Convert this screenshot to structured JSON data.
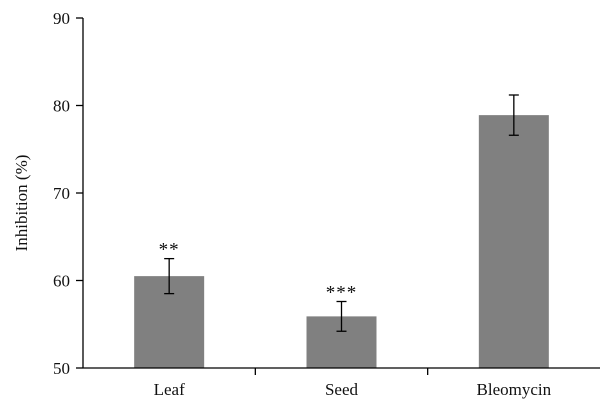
{
  "chart_data": {
    "type": "bar",
    "ylabel": "Inhibition (%)",
    "xlabel": "",
    "categories": [
      "Leaf",
      "Seed",
      "Bleomycin"
    ],
    "values": [
      60.5,
      55.9,
      78.9
    ],
    "errors": [
      2.0,
      1.7,
      2.3
    ],
    "significance": [
      "**",
      "***",
      ""
    ],
    "ylim": [
      50,
      90
    ],
    "yticks": [
      50,
      60,
      70,
      80,
      90
    ],
    "bar_color": "#808080",
    "grid": false
  }
}
